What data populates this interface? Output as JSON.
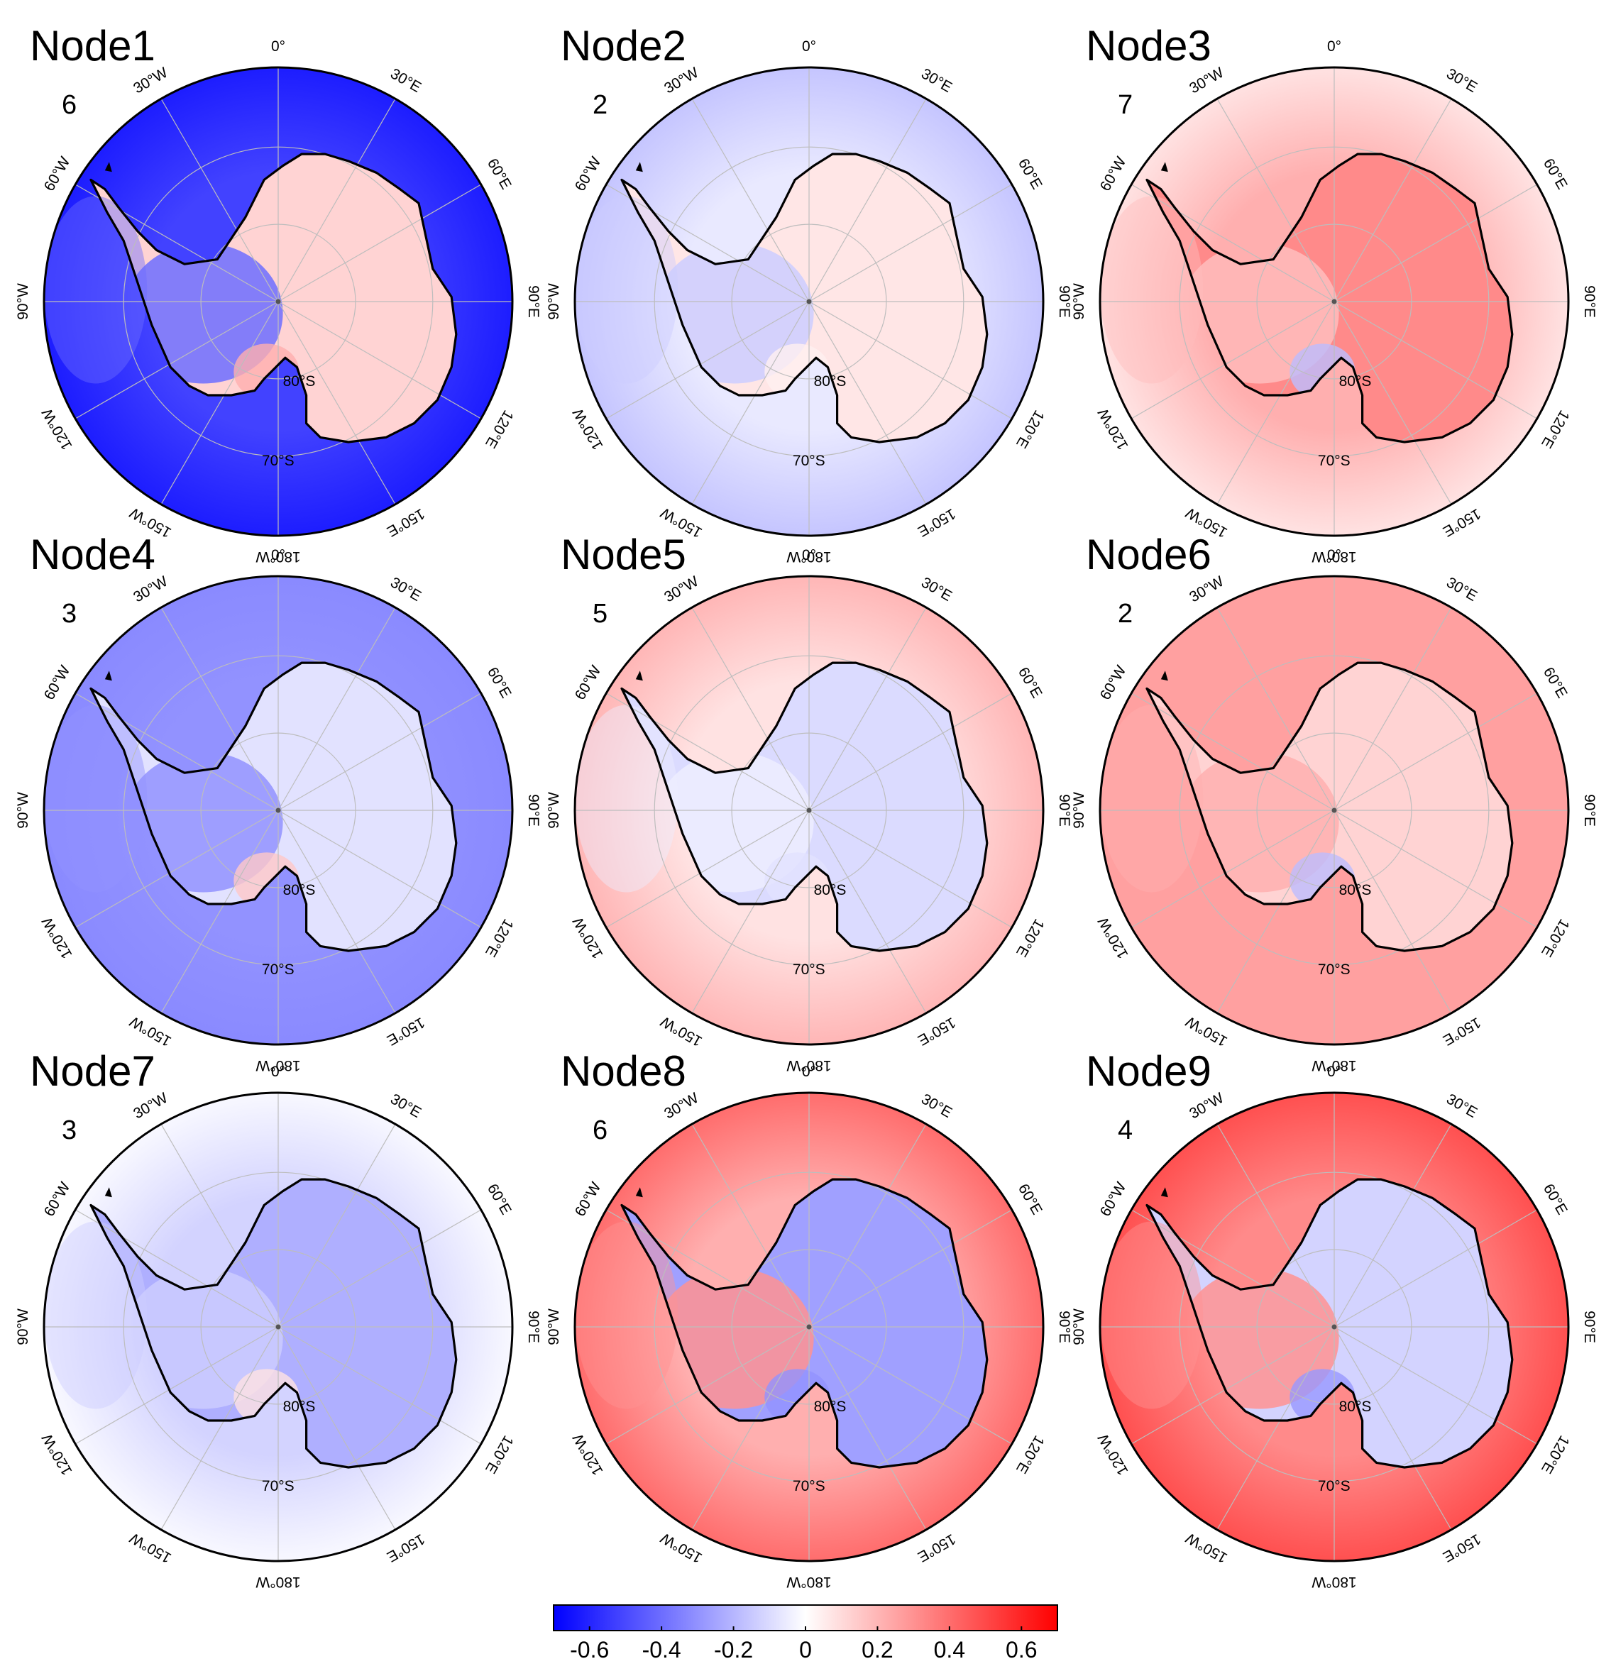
{
  "figure": {
    "type": "polar stereographic anomaly composite maps",
    "region": "Antarctica / Southern Ocean"
  },
  "longitude_labels": [
    "0°",
    "30°E",
    "60°E",
    "90°E",
    "120°E",
    "150°E",
    "180°W",
    "150°W",
    "120°W",
    "90°W",
    "60°W",
    "30°W"
  ],
  "latitude_labels": [
    "80°S",
    "70°S"
  ],
  "colors": {
    "negative_max": "#0000ff",
    "neutral": "#ffffff",
    "positive_max": "#ff0000",
    "coastline": "#000000",
    "grid": "#bdbdbd"
  },
  "colorbar": {
    "min": -0.7,
    "max": 0.7,
    "ticks": [
      "-0.6",
      "-0.4",
      "-0.2",
      "0",
      "0.2",
      "0.4",
      "0.6"
    ]
  },
  "nodes": [
    {
      "title": "Node1",
      "count": "6",
      "ocean": -0.52,
      "outer": -0.62,
      "interior": 0.12,
      "west": -0.4,
      "ross": 0.22
    },
    {
      "title": "Node2",
      "count": "2",
      "ocean": -0.06,
      "outer": -0.16,
      "interior": 0.07,
      "west": -0.14,
      "ross": 0.04
    },
    {
      "title": "Node3",
      "count": "7",
      "ocean": 0.22,
      "outer": 0.08,
      "interior": 0.32,
      "west": 0.18,
      "ross": -0.18
    },
    {
      "title": "Node4",
      "count": "3",
      "ocean": -0.3,
      "outer": -0.32,
      "interior": -0.08,
      "west": -0.3,
      "ross": 0.15
    },
    {
      "title": "Node5",
      "count": "5",
      "ocean": 0.08,
      "outer": 0.2,
      "interior": -0.1,
      "west": -0.05,
      "ross": -0.08
    },
    {
      "title": "Node6",
      "count": "2",
      "ocean": 0.26,
      "outer": 0.26,
      "interior": 0.12,
      "west": 0.22,
      "ross": -0.18
    },
    {
      "title": "Node7",
      "count": "3",
      "ocean": -0.12,
      "outer": -0.02,
      "interior": -0.22,
      "west": -0.14,
      "ross": 0.08
    },
    {
      "title": "Node8",
      "count": "6",
      "ocean": 0.22,
      "outer": 0.4,
      "interior": -0.26,
      "west": 0.3,
      "ross": -0.3
    },
    {
      "title": "Node9",
      "count": "4",
      "ocean": 0.32,
      "outer": 0.48,
      "interior": -0.12,
      "west": 0.3,
      "ross": -0.28
    }
  ]
}
